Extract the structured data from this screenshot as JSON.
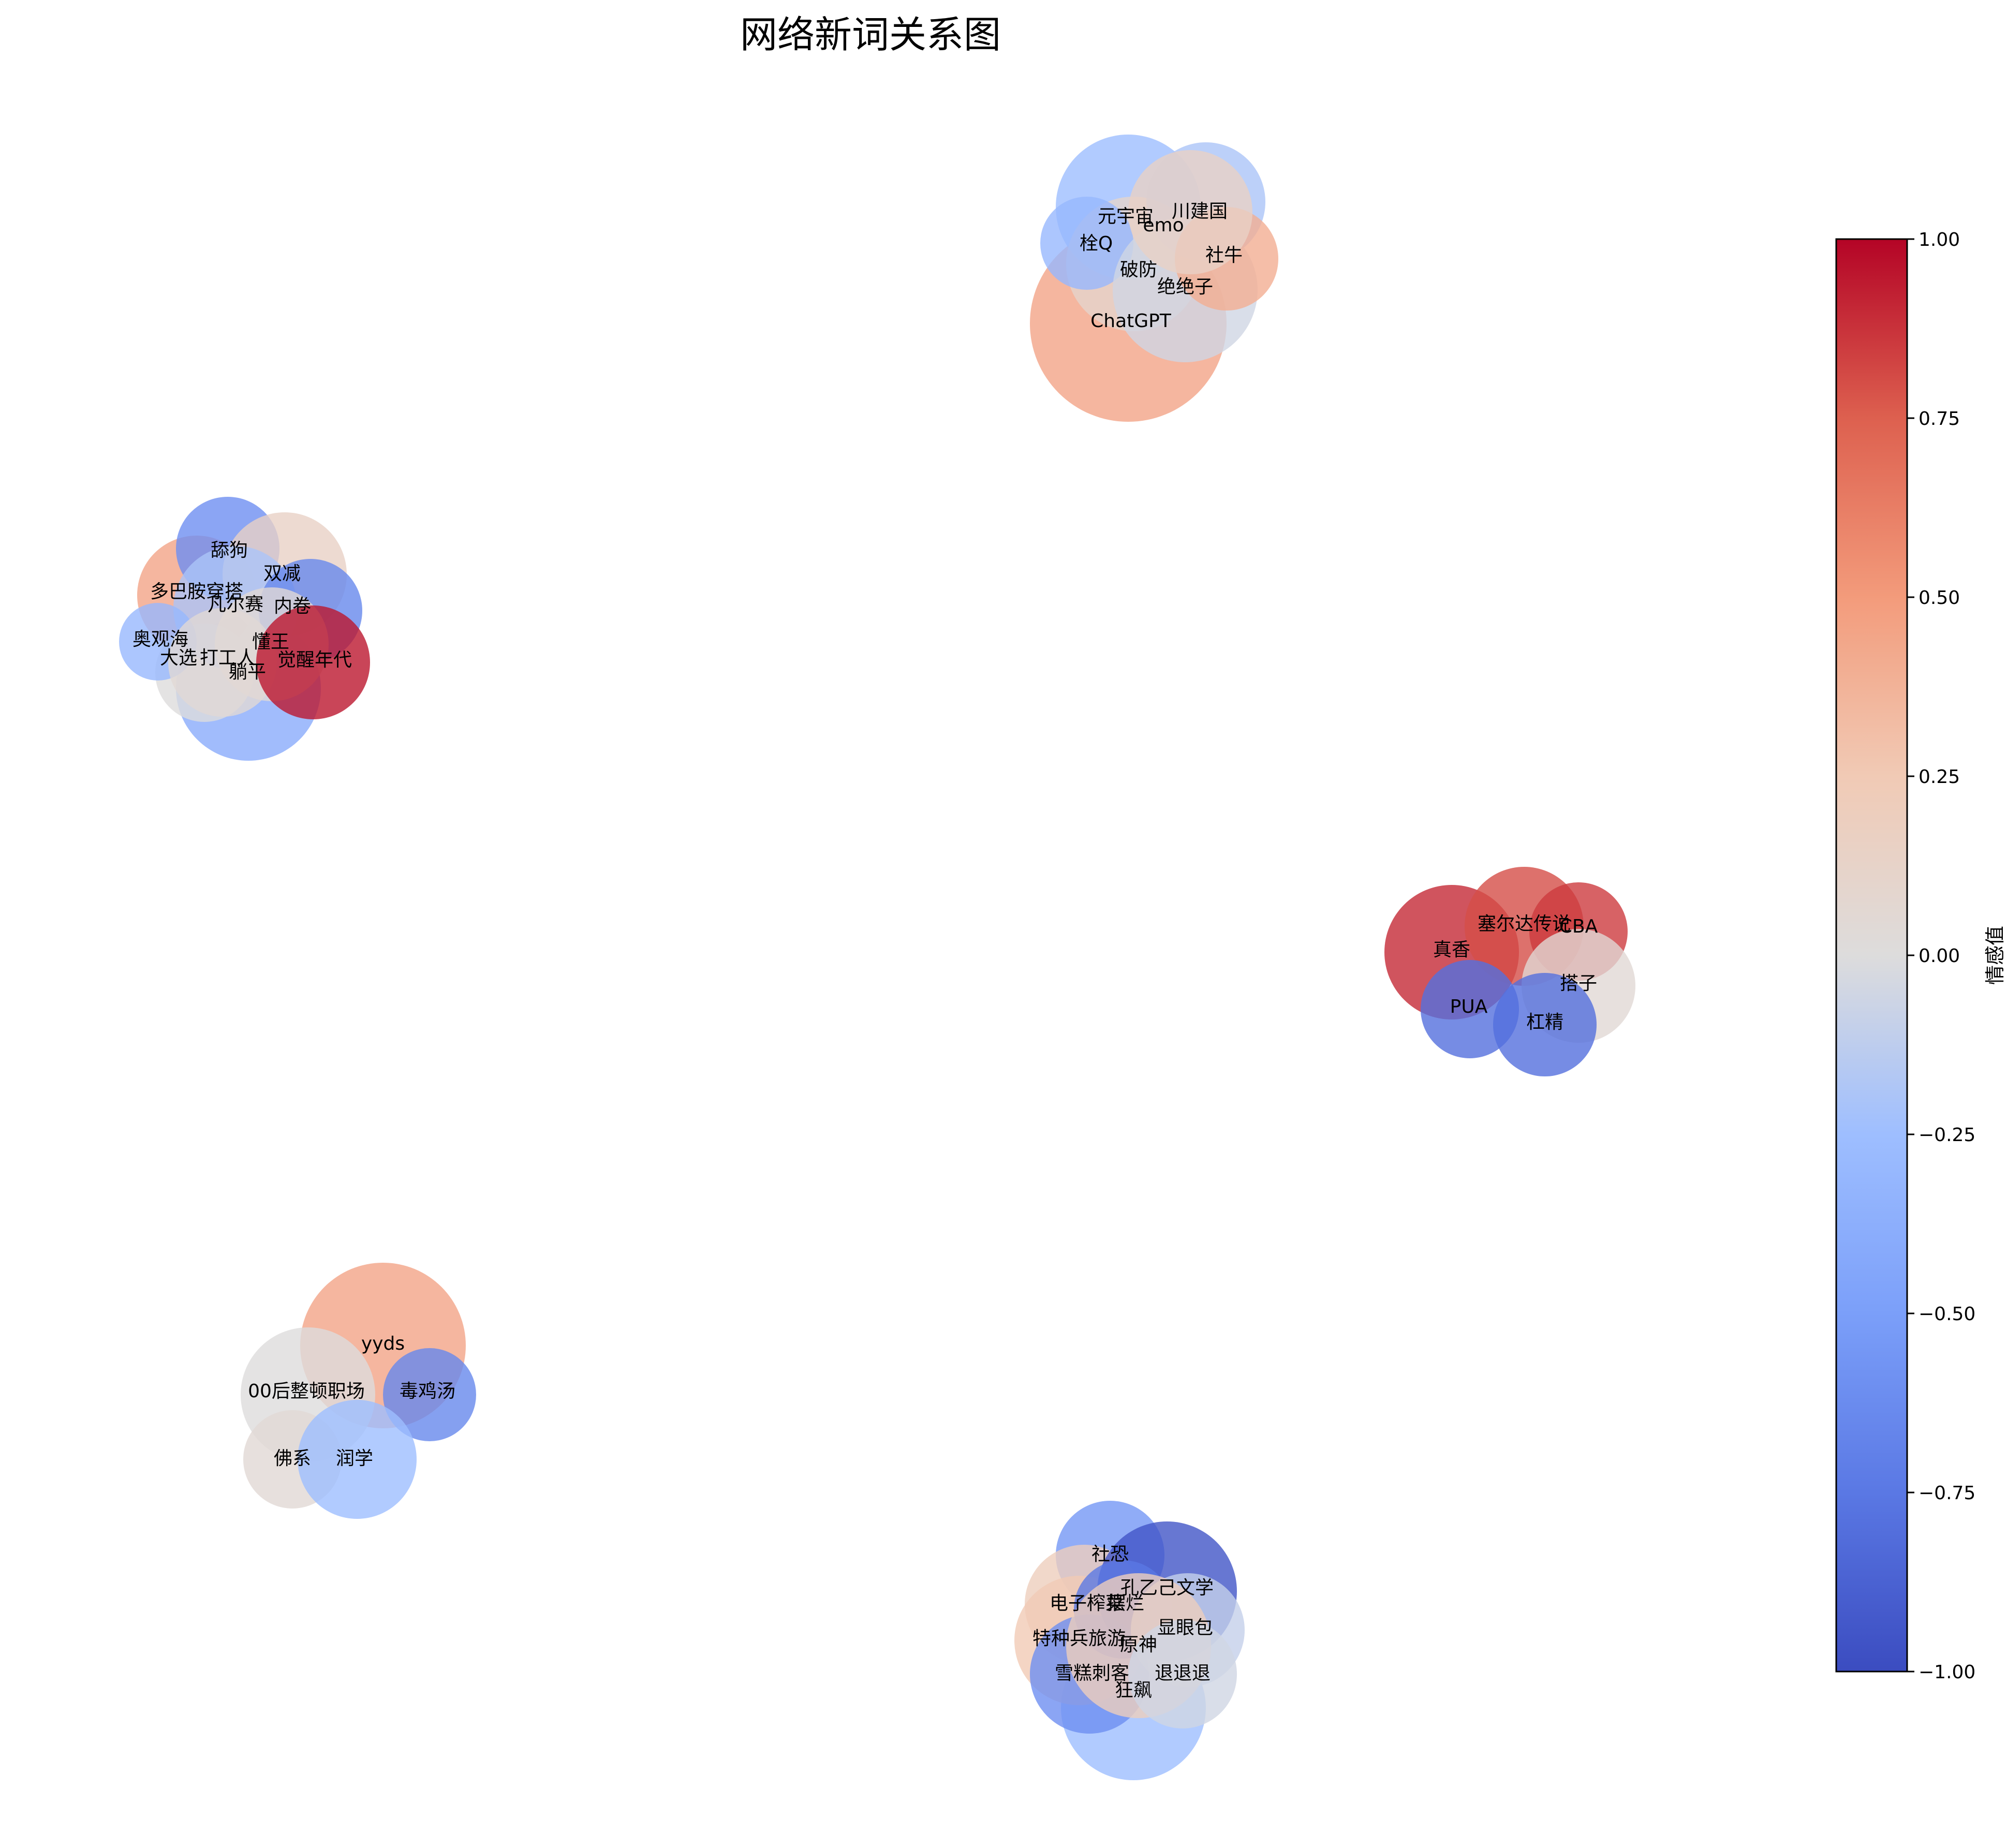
{
  "chart_data": {
    "type": "bubble-network",
    "title": "网络新词关系图",
    "colorbar": {
      "label": "情感值",
      "range": [
        -1.0,
        1.0
      ],
      "ticks": [
        {
          "value": 1.0,
          "label": "1.00"
        },
        {
          "value": 0.75,
          "label": "0.75"
        },
        {
          "value": 0.5,
          "label": "0.50"
        },
        {
          "value": 0.25,
          "label": "0.25"
        },
        {
          "value": 0.0,
          "label": "0.00"
        },
        {
          "value": -0.25,
          "label": "−0.25"
        },
        {
          "value": -0.5,
          "label": "−0.50"
        },
        {
          "value": -0.75,
          "label": "−0.75"
        },
        {
          "value": -1.0,
          "label": "−1.00"
        }
      ],
      "colormap": "coolwarm"
    },
    "nodes": [
      {
        "word": "元宇宙",
        "sentiment": -0.25,
        "cluster": 1
      },
      {
        "word": "emo",
        "sentiment": 0.15,
        "cluster": 1
      },
      {
        "word": "川建国",
        "sentiment": -0.2,
        "cluster": 1
      },
      {
        "word": "栓Q",
        "sentiment": -0.3,
        "cluster": 1
      },
      {
        "word": "社牛",
        "sentiment": 0.4,
        "cluster": 1
      },
      {
        "word": "破防",
        "sentiment": 0.1,
        "cluster": 1
      },
      {
        "word": "绝绝子",
        "sentiment": -0.05,
        "cluster": 1
      },
      {
        "word": "ChatGPT",
        "sentiment": 0.45,
        "cluster": 1
      },
      {
        "word": "舔狗",
        "sentiment": -0.6,
        "cluster": 2
      },
      {
        "word": "双减",
        "sentiment": 0.15,
        "cluster": 2
      },
      {
        "word": "多巴胺穿搭",
        "sentiment": 0.45,
        "cluster": 2
      },
      {
        "word": "凡尔赛",
        "sentiment": -0.2,
        "cluster": 2
      },
      {
        "word": "内卷",
        "sentiment": -0.65,
        "cluster": 2
      },
      {
        "word": "奥观海",
        "sentiment": -0.3,
        "cluster": 2
      },
      {
        "word": "懂王",
        "sentiment": 0.05,
        "cluster": 2
      },
      {
        "word": "打工人",
        "sentiment": 0.05,
        "cluster": 2
      },
      {
        "word": "躺平",
        "sentiment": -0.4,
        "cluster": 2
      },
      {
        "word": "觉醒年代",
        "sentiment": 0.95,
        "cluster": 2
      },
      {
        "word": "大选",
        "sentiment": 0.0,
        "cluster": 2
      },
      {
        "word": "塞尔达传说",
        "sentiment": 0.8,
        "cluster": 3
      },
      {
        "word": "CBA",
        "sentiment": 0.85,
        "cluster": 3
      },
      {
        "word": "真香",
        "sentiment": 0.9,
        "cluster": 3
      },
      {
        "word": "搭子",
        "sentiment": 0.05,
        "cluster": 3
      },
      {
        "word": "PUA",
        "sentiment": -0.8,
        "cluster": 3
      },
      {
        "word": "杠精",
        "sentiment": -0.8,
        "cluster": 3
      },
      {
        "word": "yyds",
        "sentiment": 0.45,
        "cluster": 4
      },
      {
        "word": "00后整顿职场",
        "sentiment": 0.0,
        "cluster": 4
      },
      {
        "word": "毒鸡汤",
        "sentiment": -0.65,
        "cluster": 4
      },
      {
        "word": "佛系",
        "sentiment": 0.05,
        "cluster": 4
      },
      {
        "word": "润学",
        "sentiment": -0.25,
        "cluster": 4
      },
      {
        "word": "社恐",
        "sentiment": -0.55,
        "cluster": 5
      },
      {
        "word": "孔乙己文学",
        "sentiment": -0.95,
        "cluster": 5
      },
      {
        "word": "电子榨菜",
        "sentiment": 0.2,
        "cluster": 5
      },
      {
        "word": "摆烂",
        "sentiment": -0.75,
        "cluster": 5
      },
      {
        "word": "显眼包",
        "sentiment": -0.1,
        "cluster": 5
      },
      {
        "word": "特种兵旅游",
        "sentiment": 0.25,
        "cluster": 5
      },
      {
        "word": "原神",
        "sentiment": 0.2,
        "cluster": 5
      },
      {
        "word": "雪糕刺客",
        "sentiment": -0.6,
        "cluster": 5
      },
      {
        "word": "退退退",
        "sentiment": -0.05,
        "cluster": 5
      },
      {
        "word": "狂飙",
        "sentiment": -0.25,
        "cluster": 5
      }
    ]
  }
}
